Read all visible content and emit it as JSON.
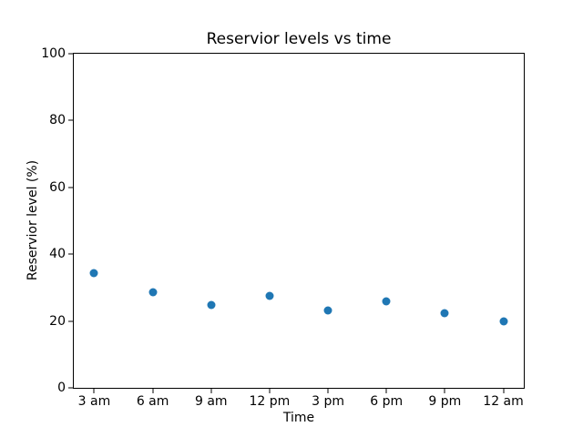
{
  "chart_data": {
    "type": "scatter",
    "title": "Reservior levels vs time",
    "xlabel": "Time",
    "ylabel": "Reservior level (%)",
    "categories": [
      "3 am",
      "6 am",
      "9 am",
      "12 pm",
      "3 pm",
      "6 pm",
      "9 pm",
      "12 am"
    ],
    "values": [
      34.2,
      28.5,
      24.9,
      27.5,
      23.1,
      25.9,
      22.3,
      19.8
    ],
    "ylim": [
      0,
      100
    ],
    "yticks": [
      0,
      20,
      40,
      60,
      80,
      100
    ],
    "xlim": [
      -0.35,
      7.35
    ],
    "grid": false,
    "legend_position": "none",
    "marker_color": "#1f77b4",
    "axis_color": "#000000",
    "background_color": "#ffffff"
  }
}
